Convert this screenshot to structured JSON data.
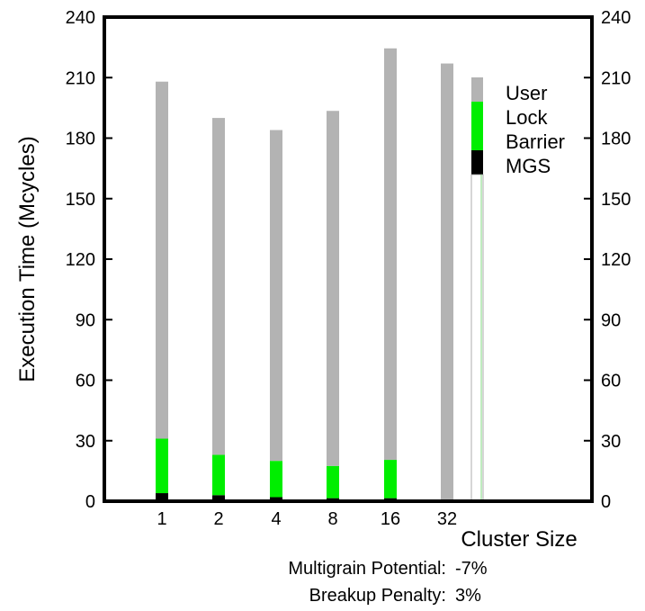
{
  "chart_data": {
    "type": "bar",
    "stacked": true,
    "categories": [
      "1",
      "2",
      "4",
      "8",
      "16",
      "32"
    ],
    "series": [
      {
        "name": "MGS",
        "color": "#000000",
        "values": [
          4,
          3,
          2,
          1.5,
          1.5,
          0
        ]
      },
      {
        "name": "Barrier",
        "color": "#00ee00",
        "values": [
          27,
          20,
          18,
          16,
          19,
          0
        ]
      },
      {
        "name": "Lock",
        "color": "#00ee00",
        "values": [
          0,
          0,
          0,
          0,
          0,
          0
        ]
      },
      {
        "name": "User",
        "color": "#b3b3b3",
        "values": [
          177,
          167,
          164,
          176,
          204,
          217
        ]
      }
    ],
    "legend_order": [
      "User",
      "Lock",
      "Barrier",
      "MGS"
    ],
    "legend_position": "right",
    "ylabel": "Execution Time (Mcycles)",
    "xlabel": "Cluster Size",
    "ylim": [
      0,
      240
    ],
    "yticks": [
      0,
      30,
      60,
      90,
      120,
      150,
      180,
      210,
      240
    ],
    "grid": false,
    "annotations": [
      {
        "label": "Multigrain Potential:",
        "value": "-7%"
      },
      {
        "label": "Breakup Penalty:",
        "value": "3%"
      }
    ]
  }
}
